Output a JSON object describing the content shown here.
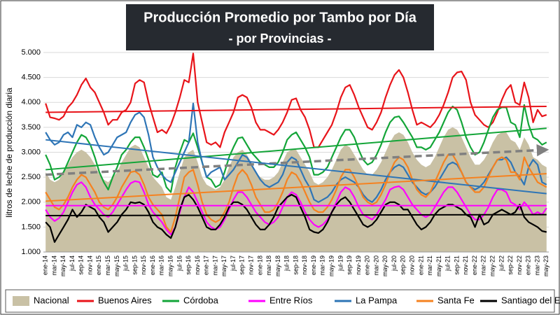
{
  "chart_data": {
    "type": "line",
    "title": "Producción Promedio por Tambo por Día",
    "subtitle": "- por Provincias -",
    "y_label": "litros de leche de producción diaria",
    "ylim": [
      1,
      5
    ],
    "yticks": [
      {
        "value": 1,
        "label": "1.000"
      },
      {
        "value": 1.5,
        "label": "1.500"
      },
      {
        "value": 2,
        "label": "2.000"
      },
      {
        "value": 2.5,
        "label": "2.500"
      },
      {
        "value": 3,
        "label": "3.000"
      },
      {
        "value": 3.5,
        "label": "3.500"
      },
      {
        "value": 4,
        "label": "4.000"
      },
      {
        "value": 4.5,
        "label": "4.500"
      },
      {
        "value": 5,
        "label": "5.000"
      }
    ],
    "grid": true,
    "categories": [
      "ene-14",
      null,
      "mar-14",
      null,
      "may-14",
      null,
      "jul-14",
      null,
      "sep-14",
      null,
      "nov-14",
      null,
      "ene-15",
      null,
      "mar-15",
      null,
      "may-15",
      null,
      "jul-15",
      null,
      "sep-15",
      null,
      "nov-15",
      null,
      "ene-16",
      null,
      "mar-16",
      null,
      "may-16",
      null,
      "jul-16",
      null,
      "sep-16",
      null,
      "nov-16",
      null,
      "ene-17",
      null,
      "mar-17",
      null,
      "may-17",
      null,
      "jul-17",
      null,
      "sep-17",
      null,
      "nov-17",
      null,
      "ene-18",
      null,
      "mar-18",
      null,
      "may-18",
      null,
      "jul-18",
      null,
      "sep-18",
      null,
      "nov-18",
      null,
      "ene-19",
      null,
      "mar-19",
      null,
      "may-19",
      null,
      "jul-19",
      null,
      "sep-19",
      null,
      "nov-19",
      null,
      "ene-20",
      null,
      "mar-20",
      null,
      "may-20",
      null,
      "jul-20",
      null,
      "sep-20",
      null,
      "nov-20",
      null,
      "ene-21",
      null,
      "mar-21",
      null,
      "may-21",
      null,
      "jul-21",
      null,
      "sep-21",
      null,
      "nov-21",
      null,
      "ene-22",
      null,
      "mar-22",
      null,
      "may-22",
      null,
      "jul-22",
      null,
      "sep-22",
      null,
      "nov-22",
      null,
      "ene-23",
      null,
      "mar-23",
      null,
      "may-23"
    ],
    "series": [
      {
        "name": "Nacional",
        "style": "area",
        "color": "#c9c1a5",
        "trend_color": "#808080",
        "trend": [
          2.55,
          3.05
        ],
        "values": [
          2.6,
          2.45,
          2.4,
          2.45,
          2.6,
          2.75,
          2.9,
          3.0,
          3.05,
          3.0,
          2.9,
          2.75,
          2.55,
          2.45,
          2.4,
          2.5,
          2.6,
          2.8,
          2.95,
          3.1,
          3.15,
          3.1,
          2.9,
          2.7,
          2.5,
          2.4,
          2.3,
          2.1,
          2.05,
          2.3,
          2.6,
          2.9,
          3.0,
          3.05,
          2.8,
          2.5,
          2.35,
          2.3,
          2.25,
          2.3,
          2.45,
          2.7,
          2.9,
          3.0,
          3.05,
          2.95,
          2.8,
          2.6,
          2.5,
          2.45,
          2.45,
          2.5,
          2.6,
          2.8,
          3.0,
          3.05,
          3.05,
          2.9,
          2.75,
          2.6,
          2.4,
          2.35,
          2.4,
          2.5,
          2.65,
          2.85,
          3.05,
          3.15,
          3.1,
          2.95,
          2.8,
          2.65,
          2.55,
          2.55,
          2.65,
          2.8,
          3.0,
          3.2,
          3.35,
          3.4,
          3.35,
          3.2,
          3.0,
          2.85,
          2.75,
          2.7,
          2.75,
          2.9,
          3.1,
          3.3,
          3.45,
          3.5,
          3.45,
          3.3,
          3.1,
          2.9,
          2.75,
          2.75,
          2.85,
          3.0,
          3.2,
          3.35,
          3.4,
          3.4,
          3.25,
          3.2,
          3.05,
          3.3,
          3.15,
          2.9,
          2.85,
          2.75,
          2.7
        ]
      },
      {
        "name": "Buenos Aires",
        "color": "#e8141a",
        "trend": [
          3.8,
          3.92
        ],
        "values": [
          3.98,
          3.7,
          3.68,
          3.65,
          3.72,
          3.9,
          4.0,
          4.15,
          4.35,
          4.48,
          4.3,
          4.2,
          4.0,
          3.8,
          3.55,
          3.65,
          3.65,
          3.8,
          3.85,
          4.0,
          4.38,
          4.45,
          4.4,
          4.0,
          3.7,
          3.4,
          3.45,
          3.38,
          3.55,
          3.8,
          4.1,
          4.45,
          4.4,
          4.98,
          4.0,
          3.6,
          3.2,
          3.15,
          3.2,
          3.1,
          3.4,
          3.6,
          3.8,
          4.1,
          4.15,
          4.1,
          3.9,
          3.6,
          3.45,
          3.45,
          3.4,
          3.35,
          3.45,
          3.6,
          3.8,
          4.05,
          4.08,
          3.85,
          3.7,
          3.45,
          3.1,
          3.1,
          3.25,
          3.4,
          3.55,
          3.8,
          4.1,
          4.3,
          4.35,
          4.15,
          3.9,
          3.7,
          3.5,
          3.45,
          3.6,
          3.8,
          4.1,
          4.35,
          4.55,
          4.65,
          4.5,
          4.2,
          3.85,
          3.55,
          3.6,
          3.55,
          3.5,
          3.6,
          3.75,
          3.95,
          4.2,
          4.5,
          4.6,
          4.62,
          4.45,
          4.0,
          3.75,
          3.65,
          3.55,
          3.5,
          3.6,
          3.8,
          4.05,
          4.25,
          4.35,
          4.0,
          3.95,
          4.4,
          4.1,
          3.6,
          3.85,
          3.72,
          3.75
        ]
      },
      {
        "name": "Córdoba",
        "color": "#13a538",
        "trend": [
          2.65,
          3.48
        ],
        "values": [
          2.95,
          2.75,
          2.45,
          2.5,
          2.6,
          2.8,
          3.0,
          3.2,
          3.35,
          3.3,
          3.15,
          2.9,
          2.6,
          2.4,
          2.25,
          2.5,
          2.7,
          2.95,
          3.05,
          3.2,
          3.3,
          3.3,
          3.1,
          2.85,
          2.55,
          2.5,
          2.6,
          2.3,
          2.2,
          2.7,
          3.0,
          3.25,
          3.2,
          3.38,
          3.1,
          2.8,
          2.5,
          2.45,
          2.3,
          2.35,
          2.6,
          2.9,
          3.1,
          3.28,
          3.3,
          3.15,
          3.0,
          2.9,
          2.8,
          2.75,
          2.7,
          2.7,
          2.8,
          3.0,
          3.25,
          3.35,
          3.4,
          3.25,
          3.1,
          2.9,
          2.55,
          2.55,
          2.6,
          2.7,
          2.9,
          3.1,
          3.3,
          3.45,
          3.45,
          3.3,
          3.05,
          2.85,
          2.75,
          2.8,
          2.95,
          3.15,
          3.4,
          3.6,
          3.7,
          3.72,
          3.6,
          3.45,
          3.3,
          3.1,
          3.1,
          3.05,
          3.1,
          3.25,
          3.4,
          3.6,
          3.8,
          3.92,
          3.85,
          3.6,
          3.3,
          3.1,
          2.95,
          3.0,
          3.2,
          3.45,
          3.7,
          3.85,
          3.9,
          3.9,
          3.6,
          3.55,
          3.3,
          3.95,
          3.55,
          3.3,
          3.25,
          3.15,
          3.2
        ]
      },
      {
        "name": "Entre Ríos",
        "color": "#ff00ff",
        "trend": [
          1.93,
          1.93
        ],
        "values": [
          1.85,
          1.7,
          1.62,
          1.68,
          1.8,
          2.0,
          2.2,
          2.35,
          2.4,
          2.3,
          2.1,
          1.95,
          1.85,
          1.75,
          1.7,
          1.8,
          1.95,
          2.1,
          2.25,
          2.38,
          2.42,
          2.4,
          2.2,
          1.95,
          1.8,
          1.7,
          1.6,
          1.45,
          1.35,
          1.5,
          1.8,
          2.1,
          2.3,
          2.2,
          2.0,
          1.8,
          1.6,
          1.5,
          1.45,
          1.5,
          1.65,
          1.85,
          2.05,
          2.2,
          2.2,
          2.1,
          1.95,
          1.8,
          1.7,
          1.6,
          1.55,
          1.6,
          1.7,
          1.9,
          2.1,
          2.2,
          2.15,
          2.0,
          1.8,
          1.65,
          1.55,
          1.5,
          1.55,
          1.65,
          1.8,
          2.0,
          2.2,
          2.3,
          2.25,
          2.1,
          1.9,
          1.75,
          1.7,
          1.65,
          1.75,
          1.9,
          2.05,
          2.25,
          2.3,
          2.32,
          2.25,
          2.1,
          1.95,
          1.85,
          1.75,
          1.7,
          1.75,
          1.9,
          2.05,
          2.2,
          2.3,
          2.3,
          2.2,
          2.05,
          1.9,
          1.75,
          1.65,
          1.65,
          1.75,
          1.9,
          2.1,
          2.25,
          2.25,
          2.2,
          2.0,
          1.95,
          1.85,
          2.0,
          1.9,
          1.75,
          1.8,
          1.75,
          1.88
        ]
      },
      {
        "name": "La Pampa",
        "color": "#2e75b6",
        "trend": [
          3.25,
          2.17
        ],
        "values": [
          3.4,
          3.25,
          3.15,
          3.2,
          3.35,
          3.4,
          3.3,
          3.55,
          3.5,
          3.6,
          3.55,
          3.3,
          3.1,
          2.95,
          3.0,
          3.15,
          3.3,
          3.35,
          3.4,
          3.6,
          3.75,
          3.8,
          3.7,
          3.35,
          2.9,
          2.7,
          2.55,
          2.45,
          2.4,
          2.6,
          2.8,
          3.0,
          3.2,
          3.98,
          3.2,
          2.8,
          2.5,
          2.6,
          2.65,
          2.7,
          2.45,
          2.55,
          2.65,
          2.8,
          2.95,
          2.9,
          2.75,
          2.6,
          2.45,
          2.35,
          2.3,
          2.35,
          2.4,
          2.55,
          2.8,
          2.9,
          2.85,
          2.65,
          2.45,
          2.3,
          2.05,
          2.0,
          2.05,
          2.1,
          2.2,
          2.35,
          2.45,
          2.5,
          2.45,
          2.4,
          2.3,
          2.15,
          2.05,
          2.0,
          2.1,
          2.25,
          2.45,
          2.6,
          2.7,
          2.75,
          2.7,
          2.55,
          2.4,
          2.3,
          2.2,
          2.15,
          2.2,
          2.3,
          2.45,
          2.6,
          2.75,
          2.8,
          2.75,
          2.6,
          2.4,
          2.3,
          2.25,
          2.3,
          2.4,
          2.55,
          2.7,
          2.85,
          2.85,
          2.9,
          2.8,
          2.6,
          2.5,
          2.35,
          2.7,
          2.85,
          2.75,
          2.4,
          2.35
        ]
      },
      {
        "name": "Santa Fe",
        "color": "#f58220",
        "trend": [
          2.02,
          2.57
        ],
        "values": [
          2.2,
          2.05,
          1.9,
          1.85,
          1.95,
          2.1,
          2.3,
          2.45,
          2.55,
          2.5,
          2.35,
          2.2,
          2.0,
          1.9,
          1.85,
          1.95,
          2.1,
          2.3,
          2.45,
          2.6,
          2.62,
          2.55,
          2.35,
          2.1,
          1.95,
          1.85,
          1.75,
          1.5,
          1.4,
          1.7,
          2.1,
          2.5,
          2.6,
          2.65,
          2.35,
          2.0,
          1.75,
          1.65,
          1.6,
          1.65,
          1.8,
          2.0,
          2.3,
          2.55,
          2.65,
          2.55,
          2.35,
          2.1,
          1.95,
          1.8,
          1.8,
          1.85,
          2.0,
          2.2,
          2.45,
          2.6,
          2.55,
          2.4,
          2.2,
          2.0,
          1.85,
          1.8,
          1.8,
          1.9,
          2.05,
          2.25,
          2.5,
          2.65,
          2.65,
          2.5,
          2.3,
          2.1,
          2.0,
          1.95,
          2.0,
          2.15,
          2.35,
          2.6,
          2.8,
          2.9,
          2.85,
          2.7,
          2.45,
          2.25,
          2.15,
          2.1,
          2.2,
          2.4,
          2.6,
          2.8,
          2.95,
          2.95,
          2.8,
          2.6,
          2.4,
          2.3,
          2.2,
          2.2,
          2.3,
          2.5,
          2.7,
          2.85,
          2.9,
          2.85,
          2.6,
          2.6,
          2.45,
          2.9,
          2.7,
          2.55,
          2.4,
          2.35,
          2.3
        ]
      },
      {
        "name": "Santiago del Estero",
        "color": "#000000",
        "trend": [
          1.73,
          1.75
        ],
        "values": [
          1.6,
          1.5,
          1.2,
          1.35,
          1.5,
          1.65,
          1.85,
          1.7,
          1.8,
          1.95,
          1.9,
          1.85,
          1.7,
          1.6,
          1.4,
          1.5,
          1.6,
          1.75,
          1.85,
          2.0,
          1.98,
          2.0,
          1.95,
          1.8,
          1.6,
          1.5,
          1.45,
          1.35,
          1.28,
          1.5,
          1.85,
          2.1,
          2.15,
          2.05,
          1.9,
          1.7,
          1.5,
          1.45,
          1.45,
          1.55,
          1.7,
          1.9,
          2.0,
          2.0,
          1.95,
          1.85,
          1.7,
          1.55,
          1.45,
          1.45,
          1.55,
          1.7,
          1.9,
          2.0,
          2.1,
          2.15,
          2.1,
          1.9,
          1.7,
          1.45,
          1.4,
          1.38,
          1.45,
          1.6,
          1.8,
          1.95,
          2.05,
          2.1,
          2.0,
          1.85,
          1.7,
          1.55,
          1.5,
          1.55,
          1.65,
          1.8,
          1.95,
          2.0,
          2.0,
          1.95,
          1.85,
          1.85,
          1.7,
          1.55,
          1.45,
          1.5,
          1.6,
          1.75,
          1.85,
          1.9,
          1.95,
          1.95,
          1.9,
          1.85,
          1.75,
          1.7,
          1.5,
          1.75,
          1.55,
          1.6,
          1.75,
          1.8,
          1.85,
          1.8,
          1.75,
          1.8,
          1.95,
          1.7,
          1.6,
          1.55,
          1.5,
          1.42,
          1.4
        ]
      }
    ]
  }
}
